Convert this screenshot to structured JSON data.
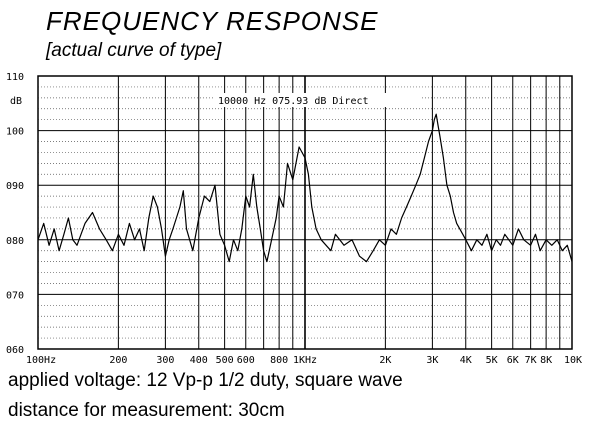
{
  "header": {
    "title": "FREQUENCY  RESPONSE",
    "subtitle": "[actual curve of type]"
  },
  "notes": {
    "line1": "applied voltage: 12 Vp-p 1/2 duty, square wave",
    "line2": "distance for measurement: 30cm"
  },
  "chart_data": {
    "type": "line",
    "ylabel": "dB",
    "xscale": "log",
    "xlim": [
      100,
      10000
    ],
    "ylim": [
      60,
      110
    ],
    "grid": true,
    "readout": "10000 Hz   075.93 dB  Direct",
    "xticks": [
      {
        "value": 100,
        "label": "100Hz"
      },
      {
        "value": 200,
        "label": "200"
      },
      {
        "value": 300,
        "label": "300"
      },
      {
        "value": 400,
        "label": "400"
      },
      {
        "value": 500,
        "label": "500"
      },
      {
        "value": 600,
        "label": "600"
      },
      {
        "value": 800,
        "label": "800"
      },
      {
        "value": 1000,
        "label": "1KHz"
      },
      {
        "value": 2000,
        "label": "2K"
      },
      {
        "value": 3000,
        "label": "3K"
      },
      {
        "value": 4000,
        "label": "4K"
      },
      {
        "value": 5000,
        "label": "5K"
      },
      {
        "value": 6000,
        "label": "6K"
      },
      {
        "value": 7000,
        "label": "7K"
      },
      {
        "value": 8000,
        "label": "8K"
      },
      {
        "value": 10000,
        "label": "10K"
      }
    ],
    "yticks": [
      {
        "value": 110,
        "label": "110"
      },
      {
        "value": 100,
        "label": "100"
      },
      {
        "value": 90,
        "label": "090"
      },
      {
        "value": 80,
        "label": "080"
      },
      {
        "value": 70,
        "label": "070"
      },
      {
        "value": 60,
        "label": "060"
      }
    ],
    "series": [
      {
        "x": [
          100,
          105,
          110,
          115,
          120,
          125,
          130,
          135,
          140,
          150,
          160,
          170,
          180,
          190,
          200,
          210,
          220,
          230,
          240,
          250,
          260,
          270,
          280,
          290,
          300,
          310,
          320,
          330,
          340,
          350,
          360,
          380,
          400,
          420,
          440,
          460,
          480,
          500,
          520,
          540,
          560,
          580,
          600,
          620,
          640,
          660,
          680,
          700,
          720,
          750,
          780,
          800,
          830,
          860,
          900,
          950,
          1000,
          1030,
          1060,
          1100,
          1150,
          1200,
          1250,
          1300,
          1400,
          1500,
          1600,
          1700,
          1800,
          1900,
          2000,
          2100,
          2200,
          2300,
          2400,
          2500,
          2600,
          2700,
          2800,
          2900,
          3000,
          3050,
          3100,
          3150,
          3200,
          3300,
          3400,
          3500,
          3600,
          3700,
          3800,
          3900,
          4000,
          4200,
          4400,
          4600,
          4800,
          5000,
          5200,
          5400,
          5600,
          5800,
          6000,
          6300,
          6600,
          7000,
          7300,
          7600,
          8000,
          8400,
          8800,
          9200,
          9600,
          10000
        ],
        "y": [
          80,
          83,
          79,
          82,
          78,
          81,
          84,
          80,
          79,
          83,
          85,
          82,
          80,
          78,
          81,
          79,
          83,
          80,
          82,
          78,
          84,
          88,
          86,
          82,
          77,
          80,
          82,
          84,
          86,
          89,
          82,
          78,
          84,
          88,
          87,
          90,
          81,
          79,
          76,
          80,
          78,
          82,
          88,
          86,
          92,
          86,
          82,
          78,
          76,
          80,
          84,
          88,
          86,
          94,
          91,
          97,
          95,
          92,
          86,
          82,
          80,
          79,
          78,
          81,
          79,
          80,
          77,
          76,
          78,
          80,
          79,
          82,
          81,
          84,
          86,
          88,
          90,
          92,
          95,
          98,
          100,
          102,
          103,
          101,
          99,
          95,
          90,
          88,
          85,
          83,
          82,
          81,
          80,
          78,
          80,
          79,
          81,
          78,
          80,
          79,
          81,
          80,
          79,
          82,
          80,
          79,
          81,
          78,
          80,
          79,
          80,
          78,
          79,
          76
        ]
      }
    ]
  }
}
